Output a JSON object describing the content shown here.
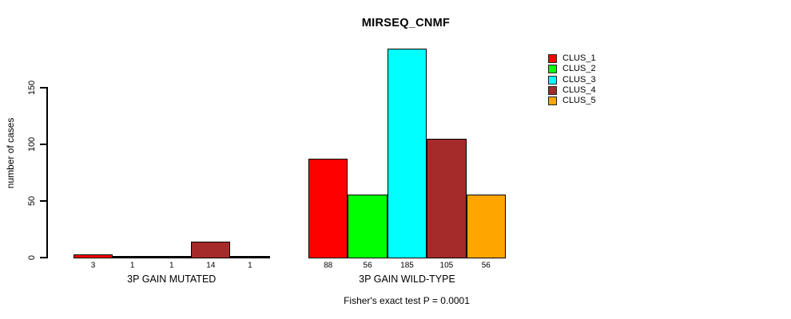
{
  "chart_data": {
    "type": "bar",
    "title": "MIRSEQ_CNMF",
    "ylabel": "number of cases",
    "yticks": [
      0,
      50,
      100,
      150
    ],
    "ylim": [
      0,
      185
    ],
    "grid": false,
    "legend_position": "top-right",
    "series": [
      "CLUS_1",
      "CLUS_2",
      "CLUS_3",
      "CLUS_4",
      "CLUS_5"
    ],
    "colors": [
      "#FF0000",
      "#00FF00",
      "#00FFFF",
      "#A52A2A",
      "#FFA500"
    ],
    "groups": [
      {
        "label": "3P GAIN MUTATED",
        "values": [
          3,
          1,
          1,
          14,
          1
        ]
      },
      {
        "label": "3P GAIN WILD-TYPE",
        "values": [
          88,
          56,
          185,
          105,
          56
        ]
      }
    ],
    "annotation": "Fisher's exact test P = 0.0001"
  }
}
